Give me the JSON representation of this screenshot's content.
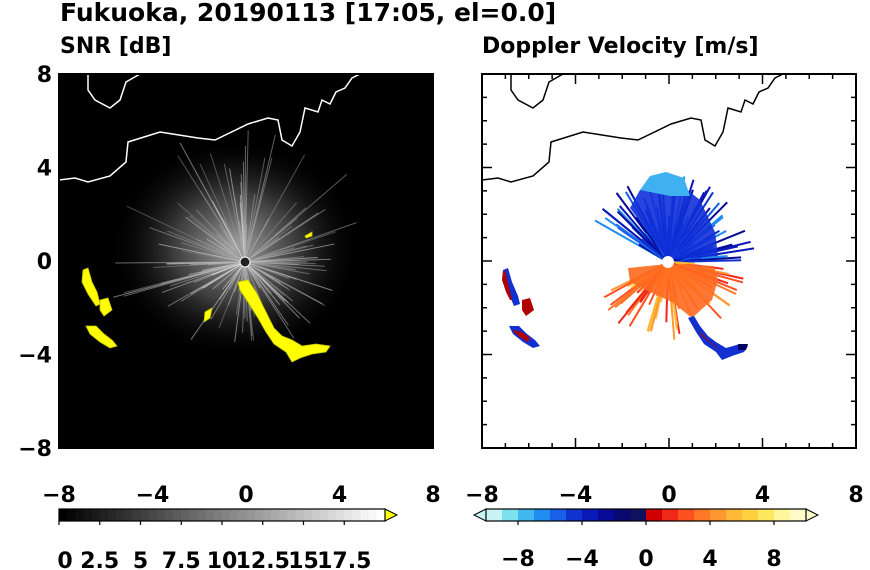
{
  "title": "Fukuoka, 20190113 [17:05, el=0.0]",
  "chart_data": [
    {
      "type": "heatmap",
      "title": "SNR [dB]",
      "xlim": [
        -8,
        8
      ],
      "ylim": [
        -8,
        8
      ],
      "xticks": [
        "−8",
        "−4",
        "0",
        "4",
        "8"
      ],
      "yticks": [
        "8",
        "4",
        "0",
        "−4",
        "−8"
      ],
      "colorbar": {
        "ticks": [
          "0",
          "2.5",
          "5",
          "7.5",
          "10",
          "12.5",
          "15",
          "17.5"
        ],
        "range": [
          0,
          20
        ],
        "extend": "max",
        "low_color": "#000000",
        "high_color": "#ffffff",
        "over_color": "#ffff00"
      },
      "colors": {
        "background": "#000000",
        "coastline": "#ffffff",
        "echo": "#ffff00"
      }
    },
    {
      "type": "heatmap",
      "title": "Doppler Velocity [m/s]",
      "xlim": [
        -8,
        8
      ],
      "ylim": [
        -8,
        8
      ],
      "xticks": [
        "−8",
        "−4",
        "0",
        "4",
        "8"
      ],
      "yticks": [],
      "colorbar": {
        "ticks": [
          "−8",
          "−4",
          "0",
          "4",
          "8"
        ],
        "range": [
          -10,
          10
        ],
        "extend": "both",
        "colors": [
          "#c8f4f8",
          "#7de2f0",
          "#3fb8f0",
          "#1f8ef0",
          "#1860e8",
          "#1033d0",
          "#0a18b8",
          "#060a96",
          "#080870",
          "#101060",
          "#d00000",
          "#f02818",
          "#ff5020",
          "#ff7828",
          "#ff9830",
          "#ffb838",
          "#ffd040",
          "#ffe860",
          "#fff59a",
          "#fffbc8"
        ]
      },
      "colors": {
        "background": "#ffffff",
        "coastline": "#000000"
      }
    }
  ]
}
